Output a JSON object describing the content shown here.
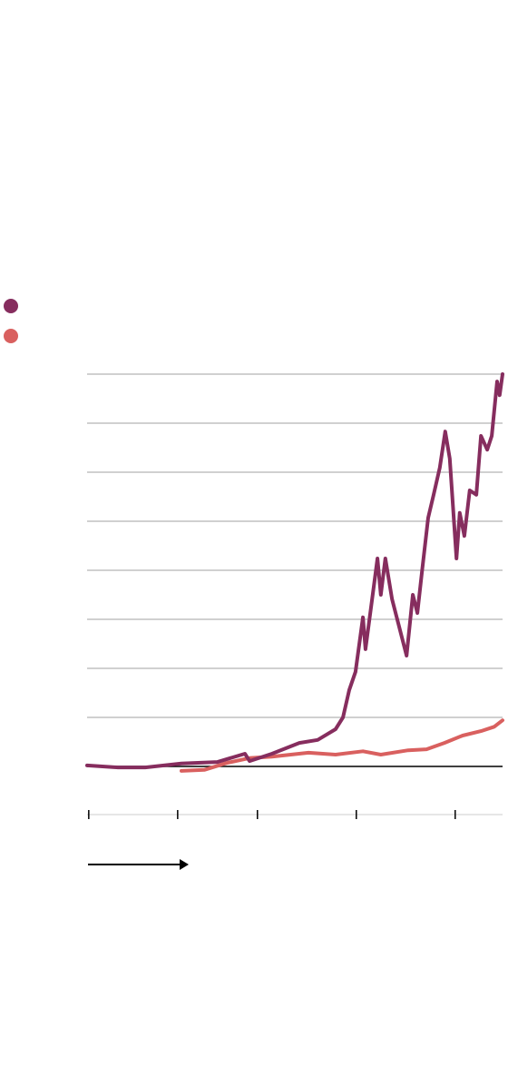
{
  "chart_data": {
    "type": "line",
    "xlim": [
      0,
      100
    ],
    "xticks": [
      0.4,
      21.8,
      41,
      64.8,
      88.6
    ],
    "ylim": [
      -0.8,
      8
    ],
    "yticks": [
      0,
      1,
      2,
      3,
      4,
      5,
      6,
      7,
      8
    ],
    "grid": true,
    "series": [
      {
        "color": "#862d5e",
        "x": [
          0,
          7.4,
          14,
          22.7,
          31.4,
          38,
          39.1,
          44.5,
          51.1,
          55.5,
          59.8,
          61.6,
          63.1,
          64.6,
          66.4,
          67,
          68.6,
          69.9,
          70.7,
          71.8,
          73.4,
          75.1,
          76.9,
          78.4,
          79.5,
          80.6,
          82.1,
          83.4,
          84.9,
          86.2,
          87.3,
          88.9,
          89.7,
          90.8,
          92.1,
          93.7,
          94.8,
          96.3,
          97.4,
          98.7,
          99.3,
          100
        ],
        "values": [
          0.02,
          -0.02,
          -0.02,
          0.06,
          0.09,
          0.26,
          0.11,
          0.26,
          0.48,
          0.54,
          0.76,
          1.0,
          1.56,
          1.93,
          3.04,
          2.39,
          3.41,
          4.24,
          3.5,
          4.24,
          3.41,
          2.85,
          2.26,
          3.5,
          3.13,
          3.96,
          5.07,
          5.54,
          6.09,
          6.83,
          6.28,
          4.24,
          5.17,
          4.7,
          5.63,
          5.54,
          6.74,
          6.46,
          6.74,
          7.85,
          7.57,
          8.0
        ]
      },
      {
        "color": "#d9605f",
        "x": [
          22.7,
          28.2,
          33.6,
          39.1,
          44.5,
          53.3,
          59.8,
          66.4,
          70.7,
          77.3,
          81.7,
          86,
          90.4,
          94.8,
          98,
          100
        ],
        "values": [
          -0.09,
          -0.07,
          0.07,
          0.17,
          0.2,
          0.28,
          0.24,
          0.31,
          0.24,
          0.33,
          0.35,
          0.48,
          0.63,
          0.72,
          0.81,
          0.94
        ]
      }
    ]
  }
}
